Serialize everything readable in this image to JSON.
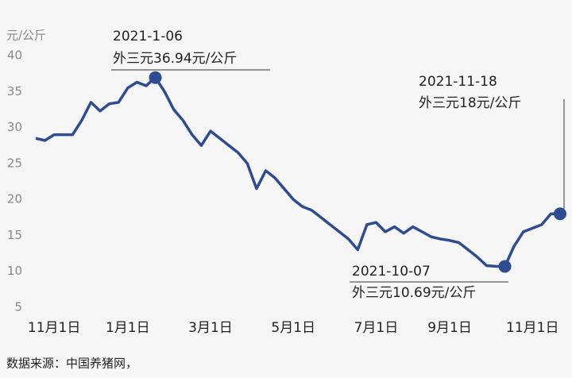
{
  "chart_data": {
    "type": "line",
    "y_label": "元/公斤",
    "source": "数据来源：中国养猪网，",
    "categories": [
      null,
      null,
      "11月1日",
      null,
      null,
      null,
      null,
      null,
      null,
      null,
      "1月1日",
      null,
      null,
      null,
      null,
      null,
      null,
      null,
      null,
      "3月1日",
      null,
      null,
      null,
      null,
      null,
      null,
      null,
      null,
      "5月1日",
      null,
      null,
      null,
      null,
      null,
      null,
      null,
      null,
      "7月1日",
      null,
      null,
      null,
      null,
      null,
      null,
      null,
      "9月1日",
      null,
      null,
      null,
      null,
      null,
      null,
      null,
      null,
      "11月1日",
      null,
      null,
      null
    ],
    "series": [
      {
        "color": "#2f4c92",
        "values": [
          28.5,
          28.2,
          29,
          29,
          29,
          31,
          33.5,
          32.3,
          33.3,
          33.5,
          35.5,
          36.3,
          35.8,
          36.94,
          35,
          32.5,
          31,
          29,
          27.5,
          29.5,
          28.5,
          27.5,
          26.5,
          25,
          21.5,
          24,
          23,
          21.5,
          20,
          19,
          18.5,
          17.5,
          16.5,
          15.5,
          14.5,
          13,
          16.5,
          16.8,
          15.5,
          16.2,
          15.3,
          16.2,
          15.5,
          14.8,
          14.5,
          14.3,
          14,
          13,
          12,
          10.8,
          10.7,
          10.69,
          13.5,
          15.5,
          16,
          16.5,
          18,
          18
        ]
      }
    ],
    "ylim": [
      5,
      40
    ],
    "yticks": [
      5,
      10,
      15,
      20,
      25,
      30,
      35,
      40
    ],
    "grid": false,
    "annotations": [
      {
        "date": "2021-1-06",
        "text": "外三元36.94元/公斤"
      },
      {
        "date": "2021-10-07",
        "text": "外三元10.69元/公斤"
      },
      {
        "date": "2021-11-18",
        "text": "外三元18元/公斤"
      }
    ]
  }
}
